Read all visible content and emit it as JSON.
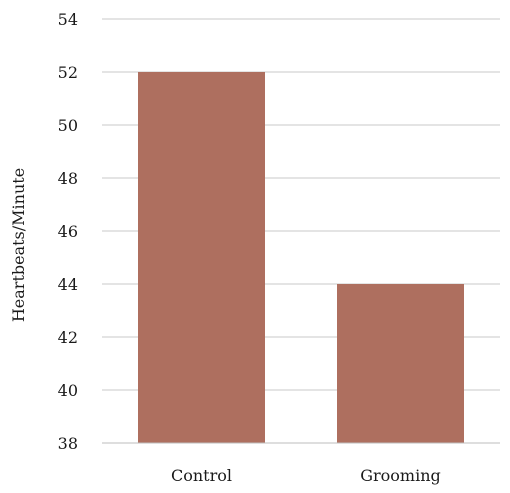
{
  "chart_data": {
    "type": "bar",
    "title": "",
    "xlabel": "",
    "ylabel": "Heartbeats/Minute",
    "categories": [
      "Control",
      "Grooming"
    ],
    "values": [
      52,
      44
    ],
    "ylim": [
      38,
      54
    ],
    "yticks": [
      38,
      40,
      42,
      44,
      46,
      48,
      50,
      52,
      54
    ],
    "grid": true,
    "legend": "none",
    "bar_color": "#ae6f5f"
  }
}
